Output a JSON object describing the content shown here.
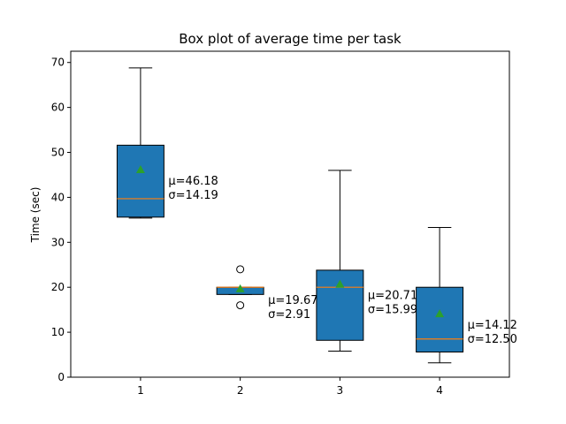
{
  "chart_data": {
    "type": "box",
    "title": "Box plot of average time per task",
    "xlabel": "",
    "ylabel": "Time (sec)",
    "ylim": [
      0,
      72.5
    ],
    "y_ticks": [
      0,
      10,
      20,
      30,
      40,
      50,
      60,
      70
    ],
    "categories": [
      "1",
      "2",
      "3",
      "4"
    ],
    "boxes": [
      {
        "category": "1",
        "whisker_low": 35.4,
        "q1": 35.6,
        "median": 39.7,
        "q3": 51.6,
        "whisker_high": 68.8,
        "mean": 46.18,
        "outliers": [],
        "annotation": [
          "μ=46.18",
          "σ=14.19"
        ]
      },
      {
        "category": "2",
        "whisker_low": 18.4,
        "q1": 18.4,
        "median": 20.0,
        "q3": 20.0,
        "whisker_high": 20.0,
        "mean": 19.67,
        "outliers": [
          24.0,
          16.0
        ],
        "annotation": [
          "μ=19.67",
          "σ=2.91"
        ]
      },
      {
        "category": "3",
        "whisker_low": 5.8,
        "q1": 8.2,
        "median": 20.0,
        "q3": 23.8,
        "whisker_high": 46.0,
        "mean": 20.71,
        "outliers": [],
        "annotation": [
          "μ=20.71",
          "σ=15.99"
        ]
      },
      {
        "category": "4",
        "whisker_low": 3.2,
        "q1": 5.6,
        "median": 8.5,
        "q3": 20.0,
        "whisker_high": 33.3,
        "mean": 14.12,
        "outliers": [],
        "annotation": [
          "μ=14.12",
          "σ=12.50"
        ]
      }
    ],
    "colors": {
      "box_fill": "#1f77b4",
      "median": "#ff7f0e",
      "mean": "#2ca02c",
      "edge": "#000000"
    },
    "grid": false,
    "legend": "none"
  }
}
